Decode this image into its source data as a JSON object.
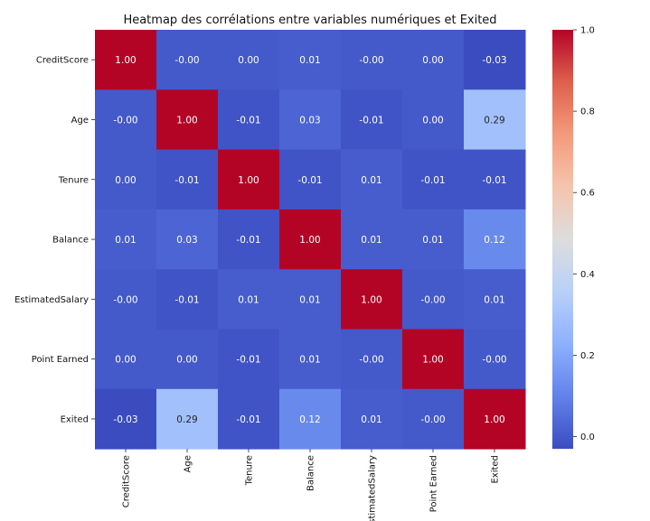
{
  "chart_data": {
    "type": "heatmap",
    "title": "Heatmap des corrélations entre variables numériques et Exited",
    "row_labels": [
      "CreditScore",
      "Age",
      "Tenure",
      "Balance",
      "EstimatedSalary",
      "Point Earned",
      "Exited"
    ],
    "col_labels": [
      "CreditScore",
      "Age",
      "Tenure",
      "Balance",
      "EstimatedSalary",
      "Point Earned",
      "Exited"
    ],
    "values": [
      [
        1.0,
        -0.0,
        0.0,
        0.01,
        -0.0,
        0.0,
        -0.03
      ],
      [
        -0.0,
        1.0,
        -0.01,
        0.03,
        -0.01,
        0.0,
        0.29
      ],
      [
        0.0,
        -0.01,
        1.0,
        -0.01,
        0.01,
        -0.01,
        -0.01
      ],
      [
        0.01,
        0.03,
        -0.01,
        1.0,
        0.01,
        0.01,
        0.12
      ],
      [
        -0.0,
        -0.01,
        0.01,
        0.01,
        1.0,
        -0.0,
        0.01
      ],
      [
        0.0,
        0.0,
        -0.01,
        0.01,
        -0.0,
        1.0,
        -0.0
      ],
      [
        -0.03,
        0.29,
        -0.01,
        0.12,
        0.01,
        -0.0,
        1.0
      ]
    ],
    "annotations": [
      [
        "1.00",
        "-0.00",
        "0.00",
        "0.01",
        "-0.00",
        "0.00",
        "-0.03"
      ],
      [
        "-0.00",
        "1.00",
        "-0.01",
        "0.03",
        "-0.01",
        "0.00",
        "0.29"
      ],
      [
        "0.00",
        "-0.01",
        "1.00",
        "-0.01",
        "0.01",
        "-0.01",
        "-0.01"
      ],
      [
        "0.01",
        "0.03",
        "-0.01",
        "1.00",
        "0.01",
        "0.01",
        "0.12"
      ],
      [
        "-0.00",
        "-0.01",
        "0.01",
        "0.01",
        "1.00",
        "-0.00",
        "0.01"
      ],
      [
        "0.00",
        "0.00",
        "-0.01",
        "0.01",
        "-0.00",
        "1.00",
        "-0.00"
      ],
      [
        "-0.03",
        "0.29",
        "-0.01",
        "0.12",
        "0.01",
        "-0.00",
        "1.00"
      ]
    ],
    "colormap": "coolwarm",
    "colorbar": {
      "range": [
        -0.03,
        1.0
      ],
      "ticks": [
        0.0,
        0.2,
        0.4,
        0.6,
        0.8,
        1.0
      ],
      "tick_labels": [
        "0.0",
        "0.2",
        "0.4",
        "0.6",
        "0.8",
        "1.0"
      ]
    }
  }
}
